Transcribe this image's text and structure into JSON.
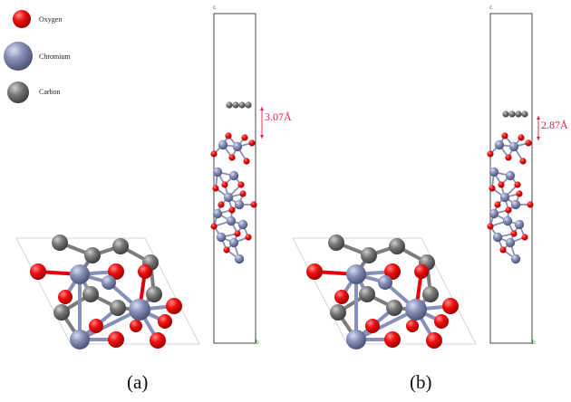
{
  "legend": {
    "items": [
      {
        "element": "Oxygen",
        "label": "Oxygen",
        "color": "#e3000b"
      },
      {
        "element": "Chromium",
        "label": "Chromium",
        "color": "#8890b8"
      },
      {
        "element": "Carbon",
        "label": "Carbon",
        "color": "#7c7c7c"
      }
    ]
  },
  "panels": [
    {
      "label": "(a)",
      "distance": "3.07Å"
    },
    {
      "label": "(b)",
      "distance": "2.87Å"
    }
  ],
  "axes": {
    "c": "c",
    "b": "b"
  },
  "colors": {
    "oxygen": "#e3000b",
    "chromium": "#8890b8",
    "carbon": "#7c7c7c",
    "annotation": "#e02040",
    "cell_line": "#333333",
    "axis_c": "#3344dd",
    "axis_b": "#22aa22"
  }
}
